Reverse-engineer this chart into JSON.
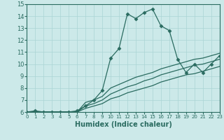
{
  "xlabel": "Humidex (Indice chaleur)",
  "xlim": [
    0,
    23
  ],
  "ylim": [
    6,
    15
  ],
  "xticks": [
    0,
    1,
    2,
    3,
    4,
    5,
    6,
    7,
    8,
    9,
    10,
    11,
    12,
    13,
    14,
    15,
    16,
    17,
    18,
    19,
    20,
    21,
    22,
    23
  ],
  "yticks": [
    6,
    7,
    8,
    9,
    10,
    11,
    12,
    13,
    14,
    15
  ],
  "bg_color": "#cce9e9",
  "grid_color": "#aad4d4",
  "line_color": "#2a6b60",
  "lines": [
    {
      "x": [
        0,
        1,
        2,
        3,
        4,
        5,
        6,
        7,
        8,
        9,
        10,
        11,
        12,
        13,
        14,
        15,
        16,
        17,
        18,
        19,
        20,
        21,
        22,
        23
      ],
      "y": [
        6.0,
        6.0,
        6.0,
        6.0,
        6.0,
        6.0,
        6.0,
        6.3,
        6.5,
        6.7,
        7.1,
        7.3,
        7.6,
        7.8,
        8.0,
        8.2,
        8.5,
        8.7,
        8.9,
        9.1,
        9.2,
        9.4,
        9.6,
        9.8
      ],
      "marker": false
    },
    {
      "x": [
        0,
        1,
        2,
        3,
        4,
        5,
        6,
        7,
        8,
        9,
        10,
        11,
        12,
        13,
        14,
        15,
        16,
        17,
        18,
        19,
        20,
        21,
        22,
        23
      ],
      "y": [
        6.0,
        6.0,
        6.0,
        6.0,
        6.0,
        6.0,
        6.0,
        6.5,
        6.7,
        7.0,
        7.5,
        7.8,
        8.1,
        8.3,
        8.6,
        8.8,
        9.1,
        9.3,
        9.5,
        9.7,
        9.9,
        10.0,
        10.2,
        10.4
      ],
      "marker": false
    },
    {
      "x": [
        0,
        1,
        2,
        3,
        4,
        5,
        6,
        7,
        8,
        9,
        10,
        11,
        12,
        13,
        14,
        15,
        16,
        17,
        18,
        19,
        20,
        21,
        22,
        23
      ],
      "y": [
        6.0,
        6.0,
        6.0,
        6.0,
        6.0,
        6.0,
        6.0,
        6.8,
        7.0,
        7.3,
        8.0,
        8.3,
        8.6,
        8.9,
        9.1,
        9.3,
        9.6,
        9.8,
        10.0,
        10.2,
        10.4,
        10.5,
        10.7,
        10.9
      ],
      "marker": false
    },
    {
      "x": [
        0,
        1,
        2,
        3,
        4,
        5,
        6,
        7,
        8,
        9,
        10,
        11,
        12,
        13,
        14,
        15,
        16,
        17,
        18,
        19,
        20,
        21,
        22,
        23
      ],
      "y": [
        6.0,
        6.1,
        6.0,
        6.0,
        6.0,
        6.0,
        6.1,
        6.5,
        7.0,
        7.8,
        10.5,
        11.3,
        14.2,
        13.8,
        14.3,
        14.6,
        13.2,
        12.8,
        10.4,
        9.3,
        10.0,
        9.3,
        10.0,
        10.7
      ],
      "marker": true,
      "markersize": 2.5
    }
  ]
}
